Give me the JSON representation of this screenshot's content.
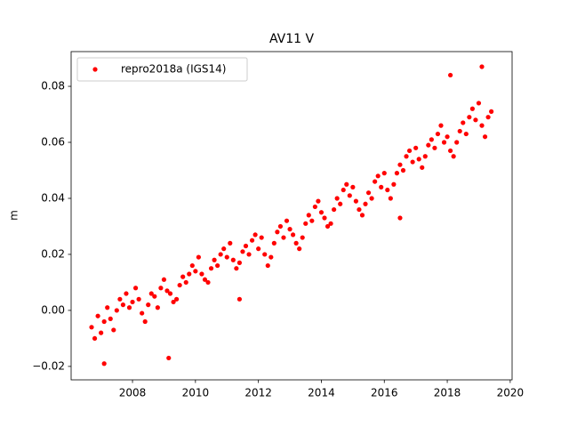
{
  "chart_data": {
    "type": "scatter",
    "title": "AV11 V",
    "y_label": "m",
    "x": [
      2006.7,
      2006.8,
      2006.9,
      2007.0,
      2007.1,
      2007.2,
      2007.3,
      2007.4,
      2007.5,
      2007.6,
      2007.7,
      2007.8,
      2007.9,
      2008.0,
      2008.1,
      2008.2,
      2008.3,
      2008.4,
      2008.5,
      2008.6,
      2008.7,
      2008.8,
      2008.9,
      2009.0,
      2009.1,
      2009.2,
      2009.3,
      2009.4,
      2009.5,
      2009.6,
      2009.7,
      2009.8,
      2009.9,
      2010.0,
      2010.1,
      2010.2,
      2010.3,
      2010.4,
      2010.5,
      2010.6,
      2010.7,
      2010.8,
      2010.9,
      2011.0,
      2011.1,
      2011.2,
      2011.3,
      2011.4,
      2011.5,
      2011.6,
      2011.7,
      2011.8,
      2011.9,
      2012.0,
      2012.1,
      2012.2,
      2012.3,
      2012.4,
      2012.5,
      2012.6,
      2012.7,
      2012.8,
      2012.9,
      2013.0,
      2013.1,
      2013.2,
      2013.3,
      2013.4,
      2013.5,
      2013.6,
      2013.7,
      2013.8,
      2013.9,
      2014.0,
      2014.1,
      2014.2,
      2014.3,
      2014.4,
      2014.5,
      2014.6,
      2014.7,
      2014.8,
      2014.9,
      2015.0,
      2015.1,
      2015.2,
      2015.3,
      2015.4,
      2015.5,
      2015.6,
      2015.7,
      2015.8,
      2015.9,
      2016.0,
      2016.1,
      2016.2,
      2016.3,
      2016.4,
      2016.5,
      2016.6,
      2016.7,
      2016.8,
      2016.9,
      2017.0,
      2017.1,
      2017.2,
      2017.3,
      2017.4,
      2017.5,
      2017.6,
      2017.7,
      2017.8,
      2017.9,
      2018.0,
      2018.1,
      2018.2,
      2018.3,
      2018.4,
      2018.5,
      2018.6,
      2018.7,
      2018.8,
      2018.9,
      2019.0,
      2019.1,
      2019.2,
      2019.3,
      2019.4,
      2009.15,
      2019.1,
      2007.1,
      2018.1,
      2011.4,
      2016.5
    ],
    "series": [
      {
        "name": "repro2018a (IGS14)",
        "color": "#ff0000",
        "values": [
          -0.006,
          -0.01,
          -0.002,
          -0.008,
          -0.004,
          0.001,
          -0.003,
          -0.007,
          0.0,
          0.004,
          0.002,
          0.006,
          0.001,
          0.003,
          0.008,
          0.004,
          -0.001,
          -0.004,
          0.002,
          0.006,
          0.005,
          0.001,
          0.008,
          0.011,
          0.007,
          0.006,
          0.003,
          0.004,
          0.009,
          0.012,
          0.01,
          0.013,
          0.016,
          0.014,
          0.019,
          0.013,
          0.011,
          0.01,
          0.015,
          0.018,
          0.016,
          0.02,
          0.022,
          0.019,
          0.024,
          0.018,
          0.015,
          0.017,
          0.021,
          0.023,
          0.02,
          0.025,
          0.027,
          0.022,
          0.026,
          0.02,
          0.016,
          0.019,
          0.024,
          0.028,
          0.03,
          0.026,
          0.032,
          0.029,
          0.027,
          0.024,
          0.022,
          0.026,
          0.031,
          0.034,
          0.032,
          0.037,
          0.039,
          0.035,
          0.033,
          0.03,
          0.031,
          0.036,
          0.04,
          0.038,
          0.043,
          0.045,
          0.041,
          0.044,
          0.039,
          0.036,
          0.034,
          0.038,
          0.042,
          0.04,
          0.046,
          0.048,
          0.044,
          0.049,
          0.043,
          0.04,
          0.045,
          0.049,
          0.052,
          0.05,
          0.055,
          0.057,
          0.053,
          0.058,
          0.054,
          0.051,
          0.055,
          0.059,
          0.061,
          0.058,
          0.063,
          0.066,
          0.06,
          0.062,
          0.057,
          0.055,
          0.06,
          0.064,
          0.067,
          0.063,
          0.069,
          0.072,
          0.068,
          0.074,
          0.066,
          0.062,
          0.069,
          0.071,
          -0.017,
          0.087,
          -0.019,
          0.084,
          0.004,
          0.033
        ]
      }
    ],
    "xlim": [
      2006.05,
      2020.06
    ],
    "xticks": [
      2008,
      2010,
      2012,
      2014,
      2016,
      2018,
      2020
    ],
    "ylim": [
      -0.0248,
      0.0924
    ],
    "yticks": [
      {
        "value": -0.02,
        "label": "−0.02"
      },
      {
        "value": 0,
        "label": "0.00"
      },
      0.02,
      0.04,
      0.06,
      0.08
    ],
    "legend": "upper left",
    "grid": false
  }
}
